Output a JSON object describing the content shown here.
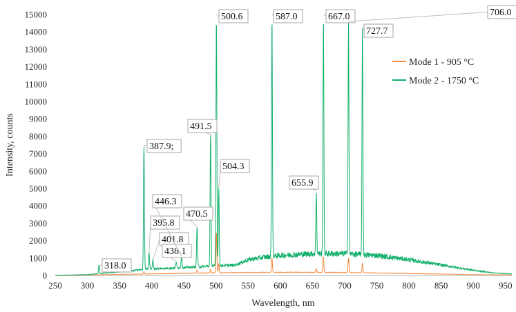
{
  "chart_data": {
    "type": "line",
    "title": "",
    "xlabel": "Wavelength, nm",
    "ylabel": "Intensity, counts",
    "xlim": [
      250,
      960
    ],
    "ylim": [
      0,
      15000
    ],
    "xticks": [
      250,
      300,
      350,
      400,
      450,
      500,
      550,
      600,
      650,
      700,
      750,
      800,
      850,
      900,
      950
    ],
    "yticks": [
      0,
      1000,
      2000,
      3000,
      4000,
      5000,
      6000,
      7000,
      8000,
      9000,
      10000,
      11000,
      12000,
      13000,
      14000,
      15000
    ],
    "grid": false,
    "legend_position": "right",
    "series": [
      {
        "name": "Mode 1 - 905 °C",
        "color": "#f4883a",
        "baseline": [
          [
            250,
            0
          ],
          [
            300,
            30
          ],
          [
            350,
            60
          ],
          [
            400,
            90
          ],
          [
            450,
            120
          ],
          [
            500,
            150
          ],
          [
            550,
            170
          ],
          [
            600,
            180
          ],
          [
            650,
            180
          ],
          [
            700,
            170
          ],
          [
            750,
            140
          ],
          [
            800,
            110
          ],
          [
            850,
            80
          ],
          [
            900,
            50
          ],
          [
            960,
            30
          ]
        ],
        "peaks": [
          [
            387.9,
            200
          ],
          [
            470.5,
            300
          ],
          [
            491.5,
            350
          ],
          [
            500.6,
            2500
          ],
          [
            504.3,
            700
          ],
          [
            587.0,
            1000
          ],
          [
            655.9,
            400
          ],
          [
            667.0,
            1100
          ],
          [
            706.0,
            1000
          ],
          [
            727.7,
            700
          ]
        ]
      },
      {
        "name": "Mode 2 - 1750 °C",
        "color": "#12b06a",
        "baseline": [
          [
            250,
            0
          ],
          [
            300,
            50
          ],
          [
            350,
            200
          ],
          [
            380,
            320
          ],
          [
            400,
            380
          ],
          [
            450,
            450
          ],
          [
            500,
            550
          ],
          [
            530,
            600
          ],
          [
            550,
            900
          ],
          [
            575,
            1050
          ],
          [
            600,
            1150
          ],
          [
            625,
            1200
          ],
          [
            650,
            1250
          ],
          [
            700,
            1250
          ],
          [
            750,
            1150
          ],
          [
            800,
            900
          ],
          [
            850,
            600
          ],
          [
            900,
            300
          ],
          [
            930,
            150
          ],
          [
            960,
            80
          ]
        ],
        "peaks": [
          [
            318.0,
            600
          ],
          [
            387.9,
            7500
          ],
          [
            395.8,
            1300
          ],
          [
            401.8,
            900
          ],
          [
            438.1,
            800
          ],
          [
            446.3,
            1100
          ],
          [
            470.5,
            2800
          ],
          [
            491.5,
            8100
          ],
          [
            500.6,
            15000
          ],
          [
            504.3,
            5000
          ],
          [
            587.0,
            15000
          ],
          [
            655.9,
            4900
          ],
          [
            667.0,
            15000
          ],
          [
            706.0,
            14600
          ],
          [
            727.7,
            14300
          ]
        ]
      }
    ],
    "annotations": [
      {
        "text": "318.0",
        "x": 318.0
      },
      {
        "text": "387.9;",
        "x": 387.9
      },
      {
        "text": "395.8",
        "x": 395.8
      },
      {
        "text": "401.8",
        "x": 401.8
      },
      {
        "text": "438.1",
        "x": 438.1
      },
      {
        "text": "446.3",
        "x": 446.3
      },
      {
        "text": "470.5",
        "x": 470.5
      },
      {
        "text": "491.5",
        "x": 491.5
      },
      {
        "text": "500.6",
        "x": 500.6
      },
      {
        "text": "504.3",
        "x": 504.3
      },
      {
        "text": "587.0",
        "x": 587.0
      },
      {
        "text": "655.9",
        "x": 655.9
      },
      {
        "text": "667.0",
        "x": 667.0
      },
      {
        "text": "706.0",
        "x": 706.0
      },
      {
        "text": "727.7",
        "x": 727.7
      }
    ]
  }
}
